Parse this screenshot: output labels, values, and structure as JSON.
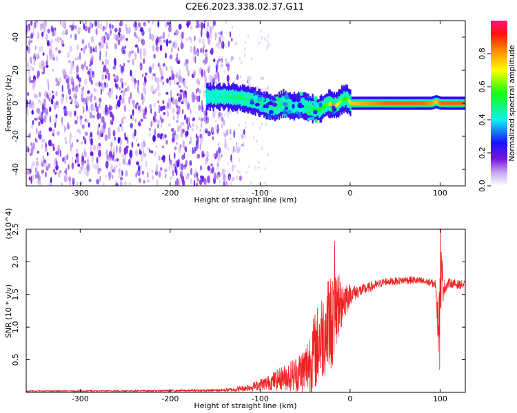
{
  "title": "C2E6.2023.338.02.37.G11",
  "chart_data": [
    {
      "type": "heatmap",
      "xlabel": "Height of straight line (km)",
      "ylabel": "Frequency (Hz)",
      "xlim": [
        -360,
        128
      ],
      "ylim": [
        -50,
        50
      ],
      "xticks": [
        -300,
        -200,
        -100,
        0,
        100
      ],
      "yticks": [
        -40,
        -20,
        0,
        20,
        40
      ],
      "colorbar": {
        "label": "Normalized spectral amplitude",
        "range": [
          0,
          1
        ],
        "ticks": [
          "0.0",
          "0.2",
          "0.4",
          "0.6",
          "0.8"
        ],
        "tick_values": [
          0.0,
          0.2,
          0.4,
          0.6,
          0.8
        ],
        "colors": [
          "#ffffff",
          "#c7a8f2",
          "#7a17e0",
          "#1a10ff",
          "#10f0f0",
          "#12ff10",
          "#ffff00",
          "#ff8800",
          "#ff1010",
          "#ff1478"
        ]
      },
      "noise_region_x": [
        -360,
        -150
      ],
      "signal_trace": {
        "x": [
          -160,
          -140,
          -120,
          -105,
          -95,
          -85,
          -75,
          -65,
          -55,
          -45,
          -35,
          -25,
          -20,
          -15,
          -10,
          -5,
          0,
          20,
          40,
          60,
          80,
          90,
          95,
          100,
          110,
          128
        ],
        "y": [
          4,
          4,
          3,
          1,
          -1,
          -3,
          0,
          -2,
          -1,
          -3,
          -4,
          0,
          -1,
          -1,
          2,
          3,
          0,
          0,
          0,
          0,
          0,
          0,
          1,
          0,
          0,
          0
        ],
        "amplitude": [
          0.4,
          0.45,
          0.5,
          0.45,
          0.5,
          0.45,
          0.5,
          0.45,
          0.4,
          0.5,
          0.55,
          0.6,
          0.85,
          0.7,
          0.6,
          0.55,
          0.75,
          0.8,
          0.85,
          0.85,
          0.85,
          0.8,
          0.75,
          0.85,
          0.85,
          0.85
        ]
      }
    },
    {
      "type": "line",
      "xlabel": "Height of straight line (km)",
      "ylabel": "SNR (10 * v/v)",
      "y_multiplier": "(x10^4)",
      "xlim": [
        -360,
        128
      ],
      "ylim": [
        0,
        25000
      ],
      "xticks": [
        -300,
        -200,
        -100,
        0,
        100
      ],
      "yticks": [
        5000,
        10000,
        15000,
        20000,
        25000
      ],
      "ytick_labels": [
        "0.5",
        "1.0",
        "1.5",
        "2.0",
        "2.5"
      ],
      "color": "#ee2222",
      "series": [
        {
          "x": [
            -360,
            -300,
            -200,
            -150,
            -130,
            -110,
            -100,
            -90,
            -80,
            -70,
            -60,
            -50,
            -40,
            -30,
            -20,
            -15,
            -10,
            0,
            10,
            20,
            30,
            40,
            50,
            60,
            70,
            80,
            90,
            95,
            98,
            100,
            105,
            110,
            120,
            128
          ],
          "y": [
            200,
            200,
            250,
            300,
            400,
            800,
            1200,
            1500,
            2000,
            2400,
            2800,
            3500,
            6000,
            9000,
            11000,
            13000,
            14000,
            15000,
            15500,
            16000,
            16500,
            17000,
            17000,
            17200,
            17200,
            17000,
            16800,
            16500,
            9000,
            18000,
            16000,
            16800,
            16500,
            16500
          ],
          "noise_envelope": [
            100,
            100,
            150,
            200,
            300,
            600,
            900,
            1200,
            1700,
            2200,
            2800,
            4000,
            6000,
            7000,
            7500,
            6000,
            4500,
            1500,
            1000,
            800,
            700,
            600,
            600,
            600,
            600,
            600,
            600,
            700,
            3000,
            6500,
            1000,
            700,
            700,
            700
          ]
        }
      ]
    }
  ]
}
